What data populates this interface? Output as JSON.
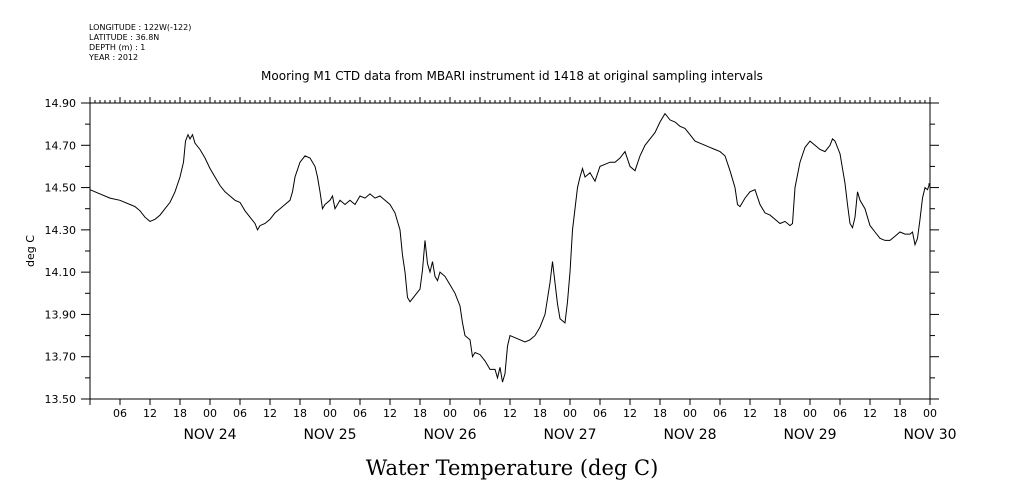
{
  "header": {
    "meta_lines": [
      "LONGITUDE : 122W(-122)",
      "LATITUDE : 36.8N",
      "DEPTH (m) : 1",
      "YEAR : 2012"
    ]
  },
  "chart_data": {
    "type": "line",
    "title": "Mooring M1 CTD data from MBARI instrument id 1418 at original sampling intervals",
    "xlabel": "Water Temperature (deg C)",
    "ylabel": "deg C",
    "ylim": [
      13.5,
      14.9
    ],
    "y_ticks": [
      "13.50",
      "13.70",
      "13.90",
      "14.10",
      "14.30",
      "14.50",
      "14.70",
      "14.90"
    ],
    "x_unit": "hours since 2012-11-23 12:00",
    "xlim": [
      0,
      168
    ],
    "x_tick_labels": [
      "06",
      "12",
      "18",
      "00",
      "06",
      "12",
      "18",
      "00",
      "06",
      "12",
      "18",
      "00",
      "06",
      "12",
      "18",
      "00",
      "06",
      "12",
      "18",
      "00",
      "06",
      "12",
      "18",
      "00",
      "06",
      "12",
      "18",
      "00"
    ],
    "day_labels": [
      "NOV 24",
      "NOV 25",
      "NOV 26",
      "NOV 27",
      "NOV 28",
      "NOV 29",
      "NOV 30"
    ],
    "series": [
      {
        "values": [
          [
            0,
            14.49
          ],
          [
            2,
            14.47
          ],
          [
            4,
            14.45
          ],
          [
            6,
            14.44
          ],
          [
            8,
            14.42
          ],
          [
            9,
            14.41
          ],
          [
            10,
            14.39
          ],
          [
            11,
            14.36
          ],
          [
            12,
            14.34
          ],
          [
            13,
            14.35
          ],
          [
            14,
            14.37
          ],
          [
            15,
            14.4
          ],
          [
            16,
            14.43
          ],
          [
            17,
            14.48
          ],
          [
            18,
            14.55
          ],
          [
            18.7,
            14.62
          ],
          [
            19.1,
            14.72
          ],
          [
            19.6,
            14.75
          ],
          [
            20,
            14.73
          ],
          [
            20.5,
            14.75
          ],
          [
            21,
            14.71
          ],
          [
            22,
            14.68
          ],
          [
            23,
            14.64
          ],
          [
            24,
            14.59
          ],
          [
            25,
            14.55
          ],
          [
            26,
            14.51
          ],
          [
            27,
            14.48
          ],
          [
            28,
            14.46
          ],
          [
            29,
            14.44
          ],
          [
            30,
            14.43
          ],
          [
            31,
            14.39
          ],
          [
            32,
            14.36
          ],
          [
            33,
            14.33
          ],
          [
            33.5,
            14.3
          ],
          [
            34,
            14.32
          ],
          [
            35,
            14.33
          ],
          [
            36,
            14.35
          ],
          [
            37,
            14.38
          ],
          [
            38,
            14.4
          ],
          [
            39,
            14.42
          ],
          [
            40,
            14.44
          ],
          [
            40.5,
            14.48
          ],
          [
            41,
            14.55
          ],
          [
            42,
            14.62
          ],
          [
            43,
            14.65
          ],
          [
            44,
            14.64
          ],
          [
            45,
            14.6
          ],
          [
            45.5,
            14.55
          ],
          [
            46,
            14.48
          ],
          [
            46.5,
            14.4
          ],
          [
            47,
            14.42
          ],
          [
            48,
            14.44
          ],
          [
            48.5,
            14.46
          ],
          [
            49,
            14.4
          ],
          [
            50,
            14.44
          ],
          [
            51,
            14.42
          ],
          [
            52,
            14.44
          ],
          [
            53,
            14.42
          ],
          [
            54,
            14.46
          ],
          [
            55,
            14.45
          ],
          [
            56,
            14.47
          ],
          [
            57,
            14.45
          ],
          [
            58,
            14.46
          ],
          [
            59,
            14.44
          ],
          [
            60,
            14.42
          ],
          [
            61,
            14.38
          ],
          [
            62,
            14.3
          ],
          [
            62.5,
            14.18
          ],
          [
            63,
            14.1
          ],
          [
            63.5,
            13.98
          ],
          [
            64,
            13.96
          ],
          [
            65,
            13.99
          ],
          [
            66,
            14.02
          ],
          [
            66.5,
            14.11
          ],
          [
            67,
            14.25
          ],
          [
            67.5,
            14.14
          ],
          [
            68,
            14.1
          ],
          [
            68.5,
            14.15
          ],
          [
            69,
            14.08
          ],
          [
            69.5,
            14.06
          ],
          [
            70,
            14.1
          ],
          [
            71,
            14.08
          ],
          [
            72,
            14.04
          ],
          [
            73,
            14.0
          ],
          [
            74,
            13.94
          ],
          [
            74.5,
            13.86
          ],
          [
            75,
            13.8
          ],
          [
            76,
            13.78
          ],
          [
            76.5,
            13.7
          ],
          [
            77,
            13.72
          ],
          [
            78,
            13.71
          ],
          [
            79,
            13.68
          ],
          [
            80,
            13.64
          ],
          [
            81,
            13.64
          ],
          [
            81.5,
            13.6
          ],
          [
            82,
            13.65
          ],
          [
            82.5,
            13.58
          ],
          [
            83,
            13.62
          ],
          [
            83.5,
            13.75
          ],
          [
            84,
            13.8
          ],
          [
            85,
            13.79
          ],
          [
            86,
            13.78
          ],
          [
            87,
            13.77
          ],
          [
            88,
            13.78
          ],
          [
            89,
            13.8
          ],
          [
            90,
            13.84
          ],
          [
            91,
            13.9
          ],
          [
            92,
            14.05
          ],
          [
            92.5,
            14.15
          ],
          [
            93,
            14.05
          ],
          [
            93.5,
            13.95
          ],
          [
            94,
            13.88
          ],
          [
            95,
            13.86
          ],
          [
            95.5,
            13.96
          ],
          [
            96,
            14.1
          ],
          [
            96.5,
            14.3
          ],
          [
            97,
            14.4
          ],
          [
            97.5,
            14.5
          ],
          [
            98,
            14.55
          ],
          [
            98.5,
            14.59
          ],
          [
            99,
            14.55
          ],
          [
            100,
            14.57
          ],
          [
            101,
            14.53
          ],
          [
            102,
            14.6
          ],
          [
            103,
            14.61
          ],
          [
            104,
            14.62
          ],
          [
            105,
            14.62
          ],
          [
            106,
            14.64
          ],
          [
            107,
            14.67
          ],
          [
            108,
            14.6
          ],
          [
            109,
            14.58
          ],
          [
            110,
            14.65
          ],
          [
            111,
            14.7
          ],
          [
            112,
            14.73
          ],
          [
            113,
            14.76
          ],
          [
            114,
            14.81
          ],
          [
            115,
            14.85
          ],
          [
            116,
            14.82
          ],
          [
            117,
            14.81
          ],
          [
            118,
            14.79
          ],
          [
            119,
            14.78
          ],
          [
            120,
            14.75
          ],
          [
            121,
            14.72
          ],
          [
            122,
            14.71
          ],
          [
            123,
            14.7
          ],
          [
            124,
            14.69
          ],
          [
            125,
            14.68
          ],
          [
            126,
            14.67
          ],
          [
            127,
            14.65
          ],
          [
            128,
            14.58
          ],
          [
            129,
            14.5
          ],
          [
            129.5,
            14.42
          ],
          [
            130,
            14.41
          ],
          [
            131,
            14.45
          ],
          [
            132,
            14.48
          ],
          [
            133,
            14.49
          ],
          [
            134,
            14.42
          ],
          [
            135,
            14.38
          ],
          [
            136,
            14.37
          ],
          [
            137,
            14.35
          ],
          [
            138,
            14.33
          ],
          [
            139,
            14.34
          ],
          [
            140,
            14.32
          ],
          [
            140.5,
            14.33
          ],
          [
            141,
            14.5
          ],
          [
            142,
            14.62
          ],
          [
            143,
            14.69
          ],
          [
            144,
            14.72
          ],
          [
            145,
            14.7
          ],
          [
            146,
            14.68
          ],
          [
            147,
            14.67
          ],
          [
            148,
            14.7
          ],
          [
            148.5,
            14.73
          ],
          [
            149,
            14.72
          ],
          [
            150,
            14.66
          ],
          [
            151,
            14.52
          ],
          [
            151.5,
            14.42
          ],
          [
            152,
            14.33
          ],
          [
            152.5,
            14.31
          ],
          [
            153,
            14.36
          ],
          [
            153.5,
            14.48
          ],
          [
            154,
            14.44
          ],
          [
            155,
            14.4
          ],
          [
            156,
            14.32
          ],
          [
            157,
            14.29
          ],
          [
            158,
            14.26
          ],
          [
            159,
            14.25
          ],
          [
            160,
            14.25
          ],
          [
            161,
            14.27
          ],
          [
            162,
            14.29
          ],
          [
            163,
            14.28
          ],
          [
            164,
            14.28
          ],
          [
            164.5,
            14.29
          ],
          [
            165,
            14.23
          ],
          [
            165.5,
            14.26
          ],
          [
            166,
            14.35
          ],
          [
            166.5,
            14.45
          ],
          [
            167,
            14.5
          ],
          [
            167.5,
            14.49
          ],
          [
            168,
            14.51
          ],
          [
            168.5,
            14.52
          ]
        ]
      }
    ],
    "grid": false,
    "legend": "none",
    "line_color": "#000000"
  }
}
